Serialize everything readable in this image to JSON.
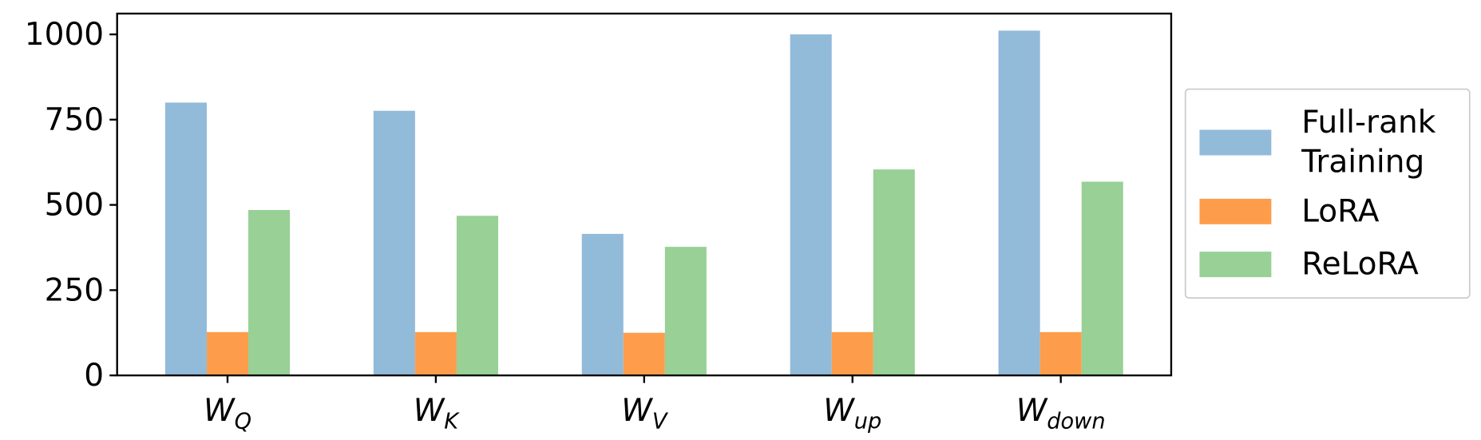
{
  "chart_data": {
    "type": "bar",
    "categories": [
      "W_Q",
      "W_K",
      "W_V",
      "W_up",
      "W_down"
    ],
    "series": [
      {
        "name": "Full-rank Training",
        "color": "#92bad9",
        "values": [
          800,
          776,
          415,
          1000,
          1011
        ]
      },
      {
        "name": "LoRA",
        "color": "#fd9d4b",
        "values": [
          127,
          127,
          125,
          127,
          127
        ]
      },
      {
        "name": "ReLoRA",
        "color": "#98d095",
        "values": [
          485,
          468,
          377,
          604,
          568
        ]
      }
    ],
    "ylim": [
      0,
      1061
    ],
    "yticks": [
      0,
      250,
      500,
      750,
      1000
    ],
    "grid": false,
    "legend": "right"
  }
}
